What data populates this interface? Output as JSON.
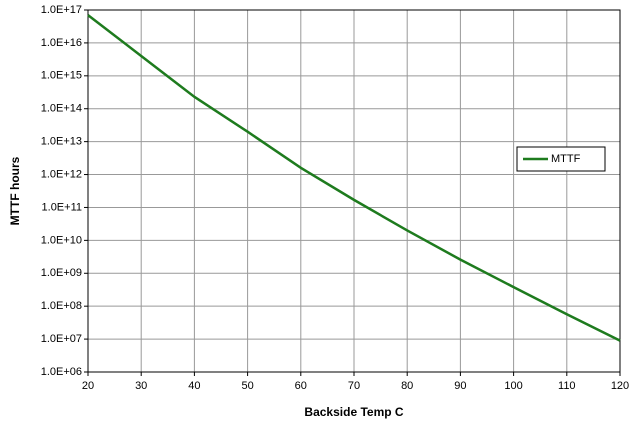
{
  "chart_data": {
    "type": "line",
    "x_label": "Backside Temp C",
    "y_label": "MTTF hours",
    "x": [
      20,
      30,
      40,
      50,
      60,
      70,
      80,
      90,
      100,
      110,
      120
    ],
    "series": [
      {
        "name": "MTTF",
        "color": "#1e7b1e",
        "values": [
          7e+16,
          4000000000000000.0,
          230000000000000.0,
          20000000000000.0,
          1600000000000.0,
          170000000000.0,
          20000000000.0,
          2600000000.0,
          380000000.0,
          57000000.0,
          9000000.0
        ]
      }
    ],
    "xlim": [
      20,
      120
    ],
    "xticks": [
      20,
      30,
      40,
      50,
      60,
      70,
      80,
      90,
      100,
      110,
      120
    ],
    "ylim": [
      1000000.0,
      1e+17
    ],
    "yscale": "log",
    "yticks": [
      {
        "value": 1000000.0,
        "label": "1.0E+06"
      },
      {
        "value": 10000000.0,
        "label": "1.0E+07"
      },
      {
        "value": 100000000.0,
        "label": "1.0E+08"
      },
      {
        "value": 1000000000.0,
        "label": "1.0E+09"
      },
      {
        "value": 10000000000.0,
        "label": "1.0E+10"
      },
      {
        "value": 100000000000.0,
        "label": "1.0E+11"
      },
      {
        "value": 1000000000000.0,
        "label": "1.0E+12"
      },
      {
        "value": 10000000000000.0,
        "label": "1.0E+13"
      },
      {
        "value": 100000000000000.0,
        "label": "1.0E+14"
      },
      {
        "value": 1000000000000000.0,
        "label": "1.0E+15"
      },
      {
        "value": 1e+16,
        "label": "1.0E+16"
      },
      {
        "value": 1e+17,
        "label": "1.0E+17"
      }
    ],
    "grid": true,
    "legend_position": "right"
  }
}
